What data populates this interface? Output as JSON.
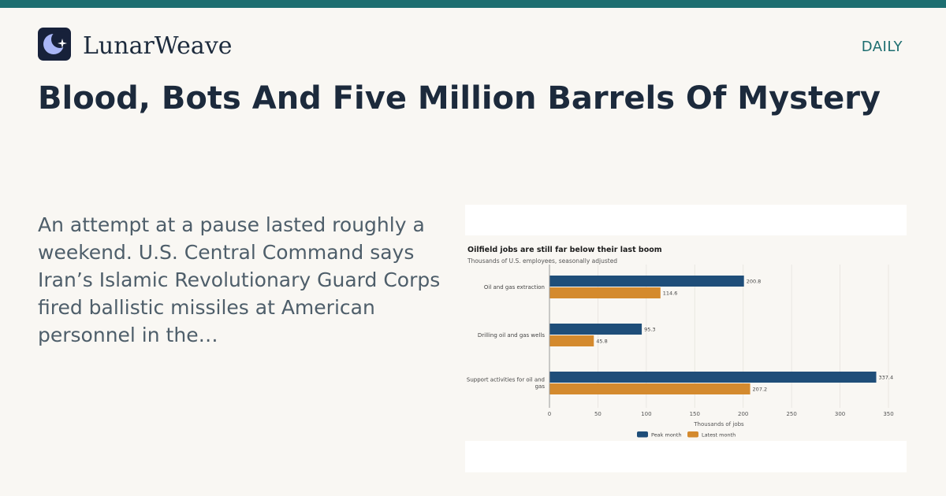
{
  "brand": {
    "name": "LunarWeave",
    "logo_icon": "crescent-moon-star-icon",
    "accent_color": "#1d6e70"
  },
  "edition": "DAILY",
  "headline": "Blood, Bots And Five Million Barrels Of Mystery",
  "excerpt": "An attempt at a pause lasted roughly a weekend. U.S. Central Command says Iran’s Islamic Revolutionary Guard Corps fired ballistic missiles at American personnel in the…",
  "chart_data": {
    "type": "bar",
    "orientation": "horizontal",
    "title": "Oilfield jobs are still far below their last boom",
    "subtitle": "Thousands of U.S. employees, seasonally adjusted",
    "xlabel": "Thousands of jobs",
    "ylabel": "",
    "categories": [
      "Oil and gas extraction",
      "Drilling oil and gas wells",
      "Support activities for oil and gas"
    ],
    "series": [
      {
        "name": "Peak month",
        "values": [
          200.8,
          95.3,
          337.4
        ],
        "color": "#1f4e79"
      },
      {
        "name": "Latest month",
        "values": [
          114.6,
          45.8,
          207.2
        ],
        "color": "#d48a2e"
      }
    ],
    "xlim": [
      0,
      350
    ],
    "xticks": [
      0,
      50,
      100,
      150,
      200,
      250,
      300,
      350
    ],
    "grid": true,
    "data_labels": true,
    "legend_position": "bottom"
  }
}
